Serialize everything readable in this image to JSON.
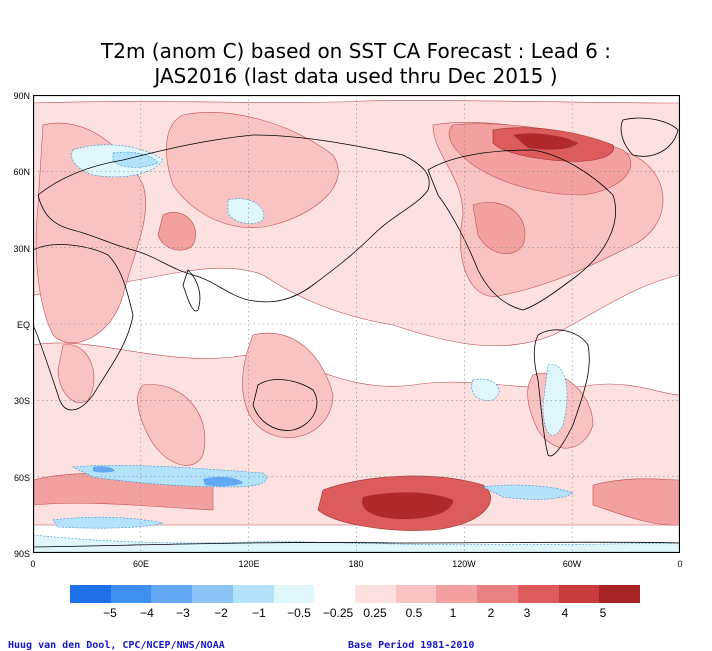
{
  "title": {
    "line1": "T2m (anom C) based on SST CA Forecast : Lead 6 :",
    "line2": "JAS2016 (last data used thru Dec 2015 )"
  },
  "axes": {
    "y_labels": [
      "90N",
      "60N",
      "30N",
      "EQ",
      "30S",
      "60S",
      "90S"
    ],
    "x_labels": [
      "0",
      "60E",
      "120E",
      "180",
      "120W",
      "60W",
      "0"
    ]
  },
  "colorbar": {
    "colors": [
      "#1f6fe8",
      "#3d8ff0",
      "#63a8f4",
      "#8cc4f7",
      "#b3e2fb",
      "#dff6fb",
      "#ffffff",
      "#fde0e0",
      "#f9c3c3",
      "#f2a0a0",
      "#e98080",
      "#dc5c5c",
      "#c83c3c",
      "#a82424"
    ],
    "labels": [
      "−5",
      "−4",
      "−3",
      "−2",
      "−1",
      "−0.5",
      "−0.25",
      "0.25",
      "0.5",
      "1",
      "2",
      "3",
      "4",
      "5"
    ]
  },
  "footer": {
    "left": "Huug van den Dool, CPC/NCEP/NWS/NOAA",
    "right": "Base Period 1981-2010"
  },
  "chart_data": {
    "type": "heatmap",
    "title": "T2m (anom C) based on SST CA Forecast : Lead 6 : JAS2016 (last data used thru Dec 2015 )",
    "x_ticks": [
      "0",
      "60E",
      "120E",
      "180",
      "120W",
      "60W",
      "0"
    ],
    "y_ticks": [
      "90N",
      "60N",
      "30N",
      "EQ",
      "30S",
      "60S",
      "90S"
    ],
    "color_levels": [
      -5,
      -4,
      -3,
      -2,
      -1,
      -0.5,
      -0.25,
      0.25,
      0.5,
      1,
      2,
      3,
      4,
      5
    ],
    "grid": true
  }
}
